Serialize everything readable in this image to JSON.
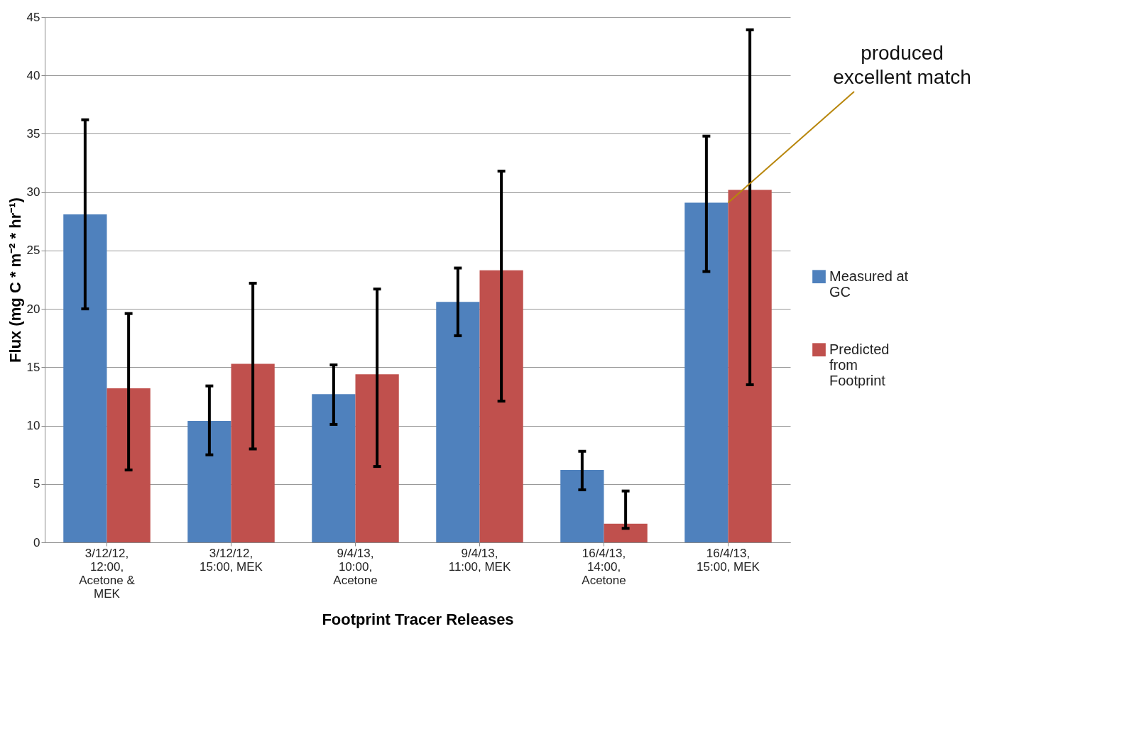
{
  "chart_data": {
    "type": "bar",
    "xlabel": "Footprint Tracer Releases",
    "ylabel": "Flux (mg C * m⁻² * hr⁻¹)",
    "categories": [
      "3/12/12, 12:00, Acetone & MEK",
      "3/12/12, 15:00, MEK",
      "9/4/13, 10:00, Acetone",
      "9/4/13, 11:00, MEK",
      "16/4/13, 14:00, Acetone",
      "16/4/13, 15:00, MEK"
    ],
    "series": [
      {
        "name": "Measured at GC",
        "color": "#4f81bd",
        "values": [
          28.1,
          10.4,
          12.7,
          20.6,
          6.2,
          29.1
        ],
        "errors": [
          [
            20.0,
            36.2
          ],
          [
            7.5,
            13.4
          ],
          [
            10.1,
            15.2
          ],
          [
            17.7,
            23.5
          ],
          [
            4.5,
            7.8
          ],
          [
            23.2,
            34.8
          ]
        ]
      },
      {
        "name": "Predicted from Footprint",
        "color": "#c0504d",
        "values": [
          13.2,
          15.3,
          14.4,
          23.3,
          1.6,
          30.2
        ],
        "errors": [
          [
            6.2,
            19.6
          ],
          [
            8.0,
            22.2
          ],
          [
            6.5,
            21.7
          ],
          [
            12.1,
            31.8
          ],
          [
            1.2,
            4.4
          ],
          [
            13.5,
            43.9
          ]
        ]
      }
    ],
    "ylim": [
      0,
      45
    ],
    "yticks": [
      0,
      5,
      10,
      15,
      20,
      25,
      30,
      35,
      40,
      45
    ],
    "grid": "y",
    "legend": "right",
    "annotations": [
      {
        "text": "produced excellent match",
        "x": "16/4/13, 15:00, MEK",
        "y": 29.1
      }
    ]
  }
}
